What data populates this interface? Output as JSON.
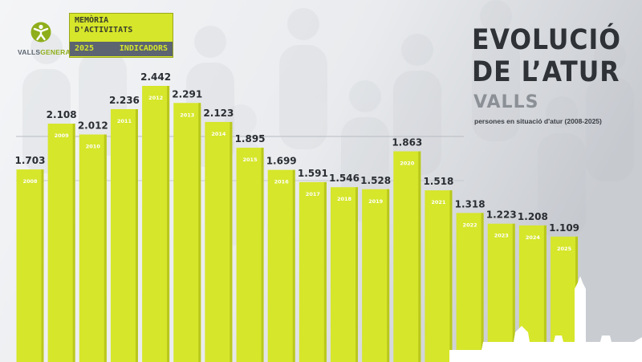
{
  "brand": {
    "name_part1": "VALLS",
    "name_part2": "GENERA",
    "icon": "person-figure-icon"
  },
  "badge": {
    "line1": "MEMÒRIA",
    "line2": "D'ACTIVITATS",
    "year": "2025",
    "section": "INDICADORS"
  },
  "header": {
    "title_line1": "EVOLUCIÓ",
    "title_line2": "DE L’ATUR",
    "location": "VALLS",
    "subtitle": "persones en situació d'atur (2008-2025)"
  },
  "colors": {
    "bar": "#d6e62a",
    "bar_dark": "#b9c81c",
    "title": "#2f3338",
    "background": "#eceef1",
    "accent_green": "#8fae1b"
  },
  "chart_data": {
    "type": "bar",
    "title": "EVOLUCIÓ DE L’ATUR",
    "subtitle": "persones en situació d'atur (2008-2025)",
    "categories": [
      "2008",
      "2009",
      "2010",
      "2011",
      "2012",
      "2013",
      "2014",
      "2015",
      "2016",
      "2017",
      "2018",
      "2019",
      "2020",
      "2021",
      "2022",
      "2023",
      "2024",
      "2025"
    ],
    "values": [
      1703,
      2108,
      2012,
      2236,
      2442,
      2291,
      2123,
      1895,
      1699,
      1591,
      1546,
      1528,
      1863,
      1518,
      1318,
      1223,
      1208,
      1109
    ],
    "value_labels": [
      "1.703",
      "2.108",
      "2.012",
      "2.236",
      "2.442",
      "2.291",
      "2.123",
      "1.895",
      "1.699",
      "1.591",
      "1.546",
      "1.528",
      "1.863",
      "1.518",
      "1.318",
      "1.223",
      "1.208",
      "1.109"
    ],
    "xlabel": "",
    "ylabel": "",
    "grid": true
  }
}
